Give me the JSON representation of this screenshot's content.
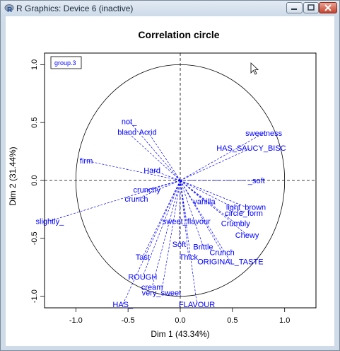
{
  "window": {
    "title": "R Graphics: Device 6 (inactive)",
    "buttons": {
      "minimize": "minimize",
      "maximize": "maximize",
      "close": "close"
    }
  },
  "colors": {
    "variables": "#0000ff",
    "axes": "#000000",
    "window_frame": "#cfdbe8"
  },
  "chart_data": {
    "type": "scatter",
    "title": "Correlation circle",
    "xlabel": "Dim 1 (43.34%)",
    "ylabel": "Dim 2 (31.44%)",
    "xlim": [
      -1.3,
      1.3
    ],
    "ylim": [
      -1.1,
      1.1
    ],
    "x_ticks": [
      -1.0,
      -0.5,
      0.0,
      0.5,
      1.0
    ],
    "x_tick_labels": [
      "-1.0",
      "-0.5",
      "0.0",
      "0.5",
      "1.0"
    ],
    "y_ticks": [
      -1.0,
      -0.5,
      0.0,
      0.5,
      1.0
    ],
    "y_tick_labels": [
      "-1.0",
      "-0.5",
      "0.0",
      "0.5",
      "1.0"
    ],
    "legend": {
      "label": "group.3",
      "placement": "top-left"
    },
    "unit_circle": true,
    "reference_lines": "dashed lines at x = 0 and y = 0",
    "arrow_style": "dashed",
    "points": [
      {
        "label": "sweetness",
        "x": 0.8,
        "y": 0.41
      },
      {
        "label": "HAS_SAUCY_BISC",
        "x": 0.68,
        "y": 0.28
      },
      {
        "label": "circle_form",
        "x": 0.61,
        "y": -0.28
      },
      {
        "label": "light_brown",
        "x": 0.63,
        "y": -0.23
      },
      {
        "label": "Crumbly",
        "x": 0.53,
        "y": -0.37
      },
      {
        "label": "Chewy",
        "x": 0.64,
        "y": -0.47
      },
      {
        "label": "Crunch",
        "x": 0.4,
        "y": -0.62
      },
      {
        "label": "ORIGINAL_TASTE",
        "x": 0.48,
        "y": -0.7
      },
      {
        "label": "_soft",
        "x": 0.73,
        "y": 0.0
      },
      {
        "label": "vanilla",
        "x": 0.23,
        "y": -0.18
      },
      {
        "label": "sweet_flavour",
        "x": 0.06,
        "y": -0.35
      },
      {
        "label": "Brittle",
        "x": 0.22,
        "y": -0.57
      },
      {
        "label": "Soft",
        "x": -0.01,
        "y": -0.55
      },
      {
        "label": "Thick",
        "x": 0.08,
        "y": -0.66
      },
      {
        "label": "not_",
        "x": -0.49,
        "y": 0.51
      },
      {
        "label": "bland",
        "x": -0.51,
        "y": 0.42
      },
      {
        "label": "Acrid",
        "x": -0.31,
        "y": 0.42
      },
      {
        "label": "Hard",
        "x": -0.27,
        "y": 0.09
      },
      {
        "label": "crunchy",
        "x": -0.32,
        "y": -0.08
      },
      {
        "label": "crunch",
        "x": -0.42,
        "y": -0.16
      },
      {
        "label": "slightly_",
        "x": -1.25,
        "y": -0.35
      },
      {
        "label": "firm",
        "x": -0.9,
        "y": 0.17
      },
      {
        "label": "ROUGH",
        "x": -0.36,
        "y": -0.83
      },
      {
        "label": "cream",
        "x": -0.27,
        "y": -0.92
      },
      {
        "label": "very_sweet",
        "x": -0.18,
        "y": -0.97
      },
      {
        "label": "HAS_",
        "x": -0.55,
        "y": -1.07
      },
      {
        "label": "FLAVOUR",
        "x": 0.16,
        "y": -1.07
      },
      {
        "label": "Tast",
        "x": -0.36,
        "y": -0.66
      }
    ]
  }
}
